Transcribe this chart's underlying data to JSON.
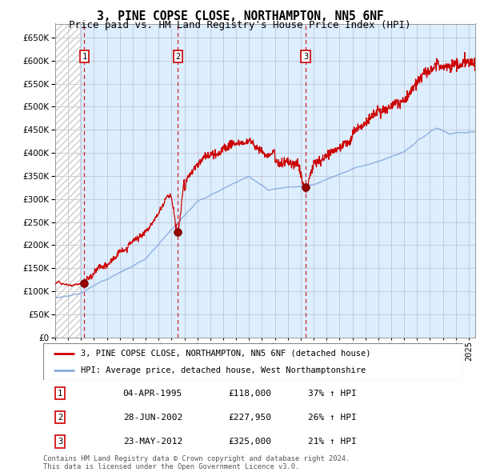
{
  "title": "3, PINE COPSE CLOSE, NORTHAMPTON, NN5 6NF",
  "subtitle": "Price paid vs. HM Land Registry's House Price Index (HPI)",
  "ylim": [
    0,
    680000
  ],
  "yticks": [
    0,
    50000,
    100000,
    150000,
    200000,
    250000,
    300000,
    350000,
    400000,
    450000,
    500000,
    550000,
    600000,
    650000
  ],
  "xlim_start": 1993.0,
  "xlim_end": 2025.5,
  "sale_dates": [
    1995.25,
    2002.5,
    2012.38
  ],
  "sale_prices": [
    118000,
    227950,
    325000
  ],
  "sale_labels": [
    "1",
    "2",
    "3"
  ],
  "sale_date_strs": [
    "04-APR-1995",
    "28-JUN-2002",
    "23-MAY-2012"
  ],
  "sale_price_strs": [
    "£118,000",
    "£227,950",
    "£325,000"
  ],
  "sale_hpi_strs": [
    "37% ↑ HPI",
    "26% ↑ HPI",
    "21% ↑ HPI"
  ],
  "legend_line1": "3, PINE COPSE CLOSE, NORTHAMPTON, NN5 6NF (detached house)",
  "legend_line2": "HPI: Average price, detached house, West Northamptonshire",
  "footnote": "Contains HM Land Registry data © Crown copyright and database right 2024.\nThis data is licensed under the Open Government Licence v3.0.",
  "price_line_color": "#cc0000",
  "hpi_line_color": "#88aadd",
  "sale_marker_color": "#990000",
  "vline_color": "#cc0000",
  "bg_color": "#ddeeff",
  "grid_color": "#bbbbcc",
  "title_fontsize": 10.5,
  "subtitle_fontsize": 9,
  "axis_fontsize": 7.5,
  "label_fontsize": 8,
  "hatch_end_year": 1994.9
}
